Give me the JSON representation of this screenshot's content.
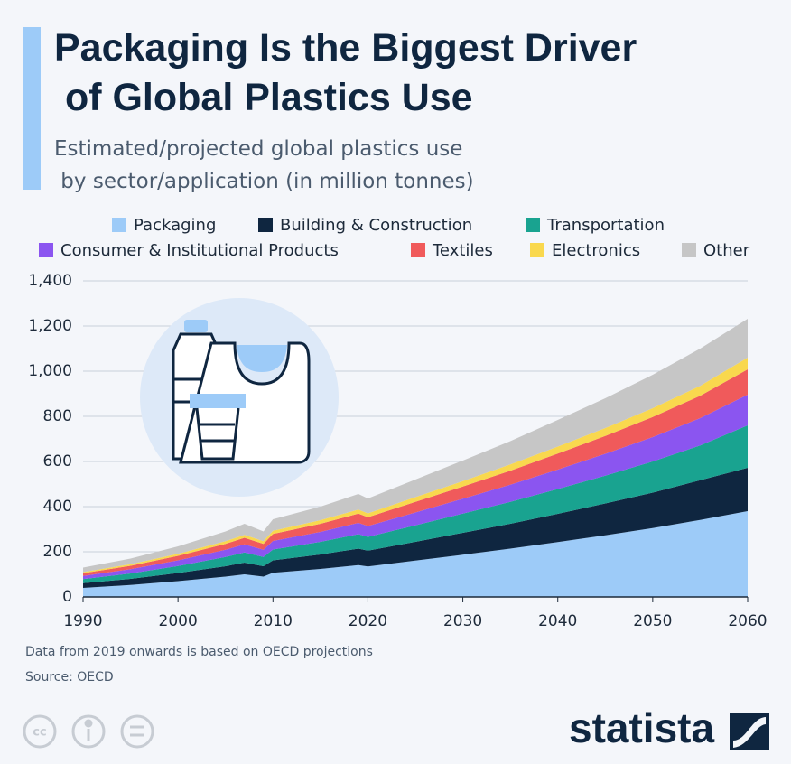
{
  "chart_data": {
    "type": "stacked_area",
    "title": "Packaging Is the Biggest Driver of Global Plastics Use",
    "subtitle": "Estimated/projected global plastics use by sector/application (in million tonnes)",
    "note": "Data from 2019 onwards is based on OECD projections",
    "source": "Source: OECD",
    "x": [
      1990,
      1995,
      2000,
      2005,
      2007,
      2009,
      2010,
      2015,
      2019,
      2020,
      2025,
      2030,
      2035,
      2040,
      2045,
      2050,
      2055,
      2060
    ],
    "series": [
      {
        "name": "Packaging",
        "color": "#9dcbf8",
        "values": [
          40,
          53,
          70,
          90,
          100,
          90,
          107,
          124,
          141,
          135,
          161,
          187,
          214,
          243,
          273,
          305,
          341,
          380
        ]
      },
      {
        "name": "Building & Construction",
        "color": "#0f2640",
        "values": [
          21,
          27,
          36,
          46,
          52,
          46,
          55,
          64,
          73,
          70,
          83,
          97,
          110,
          125,
          141,
          157,
          176,
          192
        ]
      },
      {
        "name": "Transportation",
        "color": "#19a390",
        "values": [
          18,
          24,
          31,
          41,
          45,
          41,
          48,
          56,
          64,
          61,
          73,
          85,
          97,
          110,
          123,
          138,
          154,
          188
        ]
      },
      {
        "name": "Consumer & Institutional Products",
        "color": "#8b55f0",
        "values": [
          14,
          19,
          25,
          32,
          36,
          32,
          38,
          44,
          50,
          48,
          57,
          66,
          76,
          86,
          97,
          108,
          121,
          136
        ]
      },
      {
        "name": "Textiles",
        "color": "#f05a5b",
        "values": [
          12,
          15,
          20,
          26,
          29,
          26,
          31,
          36,
          41,
          39,
          47,
          54,
          62,
          71,
          79,
          89,
          99,
          112
        ]
      },
      {
        "name": "Electronics",
        "color": "#f9d84e",
        "values": [
          5,
          7,
          9,
          12,
          13,
          12,
          14,
          16,
          18,
          17,
          21,
          24,
          28,
          31,
          35,
          39,
          44,
          52
        ]
      },
      {
        "name": "Other",
        "color": "#c6c6c6",
        "values": [
          20,
          25,
          33,
          43,
          49,
          43,
          51,
          60,
          69,
          66,
          78,
          91,
          103,
          118,
          132,
          148,
          165,
          172
        ]
      }
    ],
    "xlim": [
      1990,
      2060
    ],
    "xticks": [
      1990,
      2000,
      2010,
      2020,
      2030,
      2040,
      2050,
      2060
    ],
    "ylim": [
      0,
      1400
    ],
    "yticks": [
      0,
      200,
      400,
      600,
      800,
      {
        "value": 1000,
        "label": "1,000"
      },
      {
        "value": 1200,
        "label": "1,200"
      },
      {
        "value": 1400,
        "label": "1,400"
      }
    ],
    "grid": true
  },
  "brand": "statista"
}
